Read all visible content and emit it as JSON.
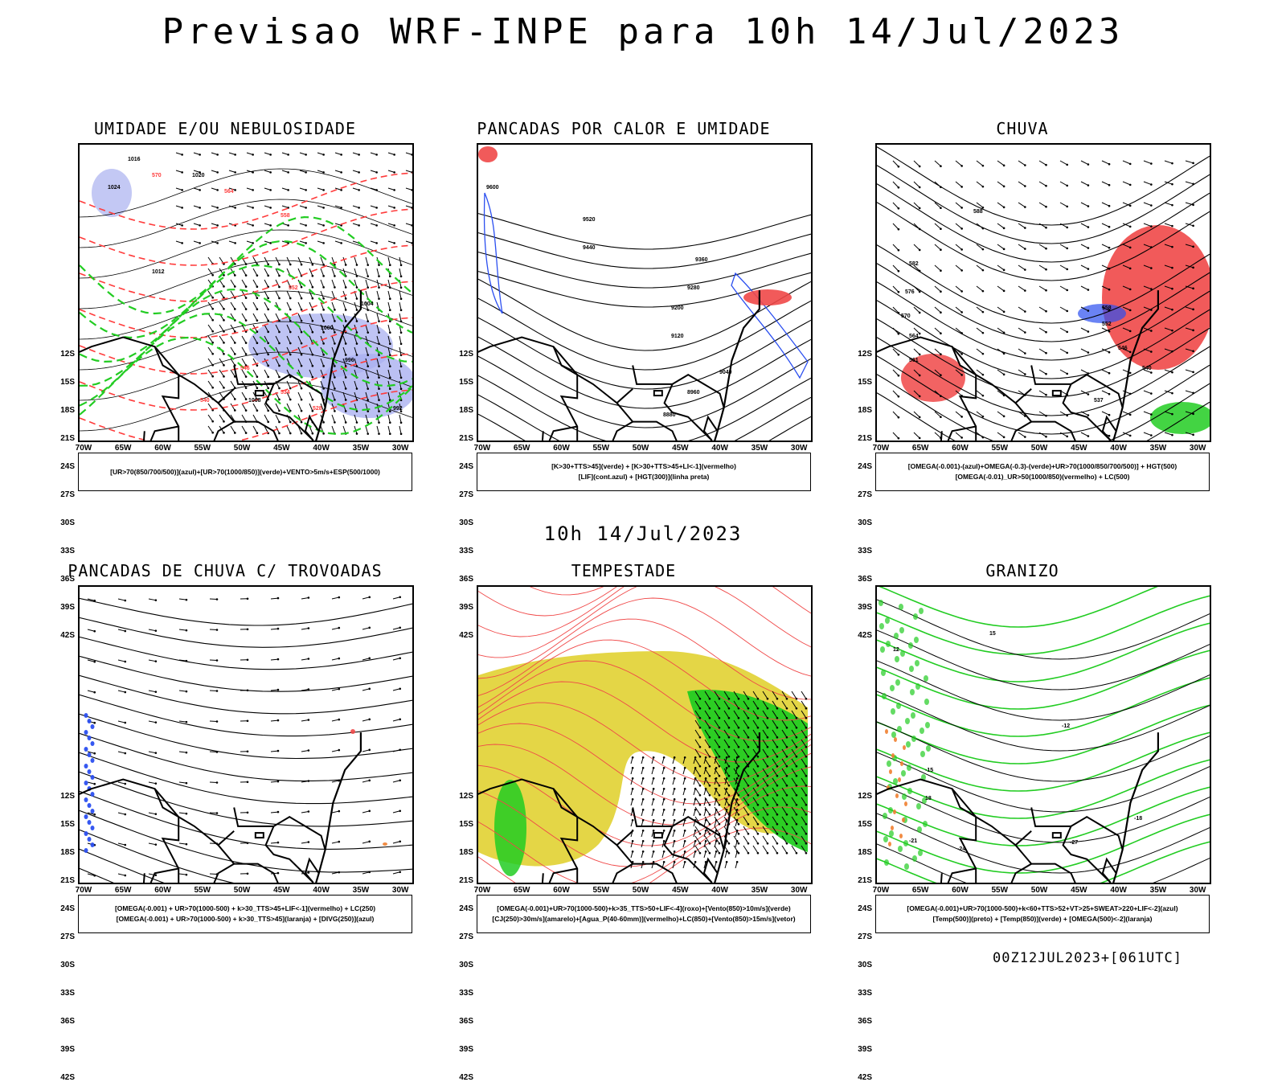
{
  "title": "Previsao WRF-INPE  para 10h 14/Jul/2023",
  "mid_time": "10h 14/Jul/2023",
  "run_stamp": "00Z12JUL2023+[061UTC]",
  "lat_labels": [
    "12S",
    "15S",
    "18S",
    "21S",
    "24S",
    "27S",
    "30S",
    "33S",
    "36S",
    "39S",
    "42S"
  ],
  "lon_labels": [
    "70W",
    "65W",
    "60W",
    "55W",
    "50W",
    "45W",
    "40W",
    "35W",
    "30W"
  ],
  "panels": [
    {
      "title": "UMIDADE E/OU NEBULOSIDADE",
      "legend": [
        "[UR>70(850/700/500)](azul)+[UR>70(1000/850)](verde)+VENTO>5m/s+ESP(500/1000)"
      ],
      "labels": [
        "1016",
        "1020",
        "1024",
        "1012",
        "1008",
        "1004",
        "1000",
        "996",
        "992",
        "570",
        "564",
        "558",
        "552",
        "546",
        "540",
        "534",
        "528"
      ]
    },
    {
      "title": "PANCADAS POR CALOR E UMIDADE",
      "legend": [
        "[K>30+TTS>45](verde) + [K>30+TTS>45+LI<-1](vermelho)",
        "[LIF](cont.azul) + [HGT(300)](linha preta)"
      ],
      "labels": [
        "9600",
        "9520",
        "9440",
        "9360",
        "9280",
        "9200",
        "9120",
        "9040",
        "8960",
        "8880"
      ]
    },
    {
      "title": "CHUVA",
      "legend": [
        "[OMEGA(-0.001)-(azul)+OMEGA(-0.3)-(verde)+UR>70(1000/850/700/500)] + HGT(500)",
        "[OMEGA(-0.01)_UR>50(1000/850)(vermelho) + LC(500)"
      ],
      "labels": [
        "588",
        "582",
        "576",
        "570",
        "564",
        "558",
        "552",
        "546",
        "540",
        "537",
        "561"
      ]
    },
    {
      "title": "PANCADAS DE CHUVA C/ TROVOADAS",
      "legend": [
        "[OMEGA(-0.001) + UR>70(1000-500) + k>30_TTS>45+LIF<-1](vermelho) + LC(250)",
        "[OMEGA(-0.001) + UR>70(1000-500) + k>30_TTS>45](laranja) + [DIVG(250)](azul)"
      ],
      "labels": []
    },
    {
      "title": "TEMPESTADE",
      "legend": [
        "[OMEGA(-0.001)+UR>70(1000-500)+k>35_TTS>50+LIF<-4](roxo)+[Vento(850)>10m/s](verde)",
        "[CJ(250)>30m/s](amarelo)+[Agua_P(40-60mm)](vermelho)+LC(850)+[Vento(850)>15m/s](vetor)"
      ],
      "labels": []
    },
    {
      "title": "GRANIZO",
      "legend": [
        "[OMEGA(-0.001)+UR>70(1000-500)+k<60+TTS>52+VT>25+SWEAT>220+LIF<-2](azul)",
        "[Temp(500)](preto) + [Temp(850)](verde) + [OMEGA(500)<-2](laranja)"
      ],
      "labels": [
        "-21",
        "-24",
        "-27",
        "-18",
        "-15",
        "-12",
        "15",
        "12",
        "18"
      ]
    }
  ],
  "colors": {
    "rh_blue": "#aab0f0",
    "rh_green": "#22cc22",
    "thick_red": "#ff3b3b",
    "yellow": "#e3d43c",
    "rain_red": "#f04848",
    "blue": "#2b4ff0",
    "orange": "#f08030"
  }
}
